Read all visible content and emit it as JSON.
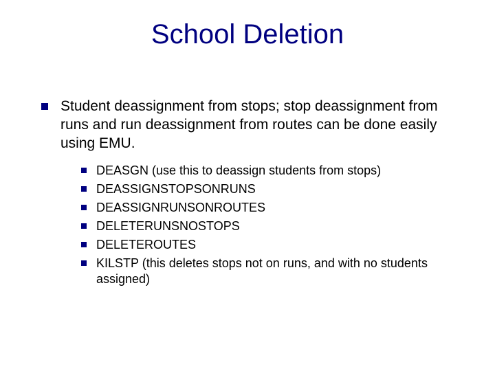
{
  "slide": {
    "title": "School Deletion",
    "title_fontsize": 40,
    "title_color": "#000080",
    "body_fontsize_lvl1": 21,
    "body_fontsize_lvl2": 18,
    "bullet_color": "#000080",
    "text_color": "#000000",
    "background_color": "#ffffff",
    "lvl1_text": "Student deassignment from stops; stop deassignment from runs and run deassignment from routes can be done easily using EMU.",
    "sub_items": [
      "DEASGN (use this to deassign students from stops)",
      "DEASSIGNSTOPSONRUNS",
      "DEASSIGNRUNSONROUTES",
      "DELETERUNSNOSTOPS",
      "DELETEROUTES",
      "KILSTP (this deletes stops not on runs, and with no students assigned)"
    ]
  }
}
